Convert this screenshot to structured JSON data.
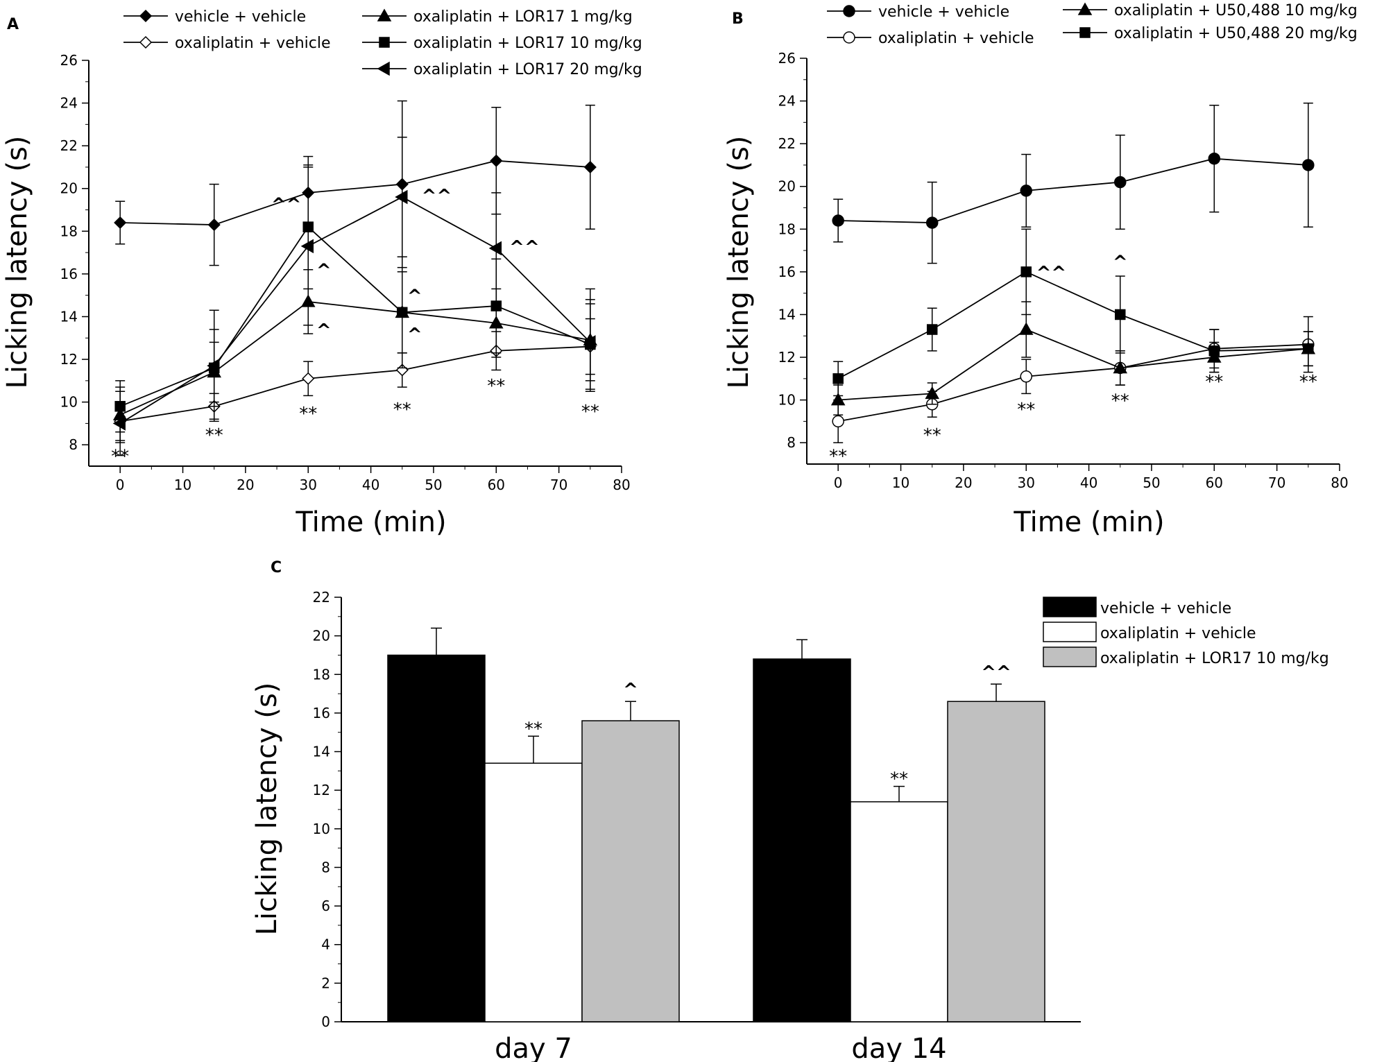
{
  "chart_data": [
    {
      "panel": "A",
      "type": "line",
      "xlabel": "Time (min)",
      "ylabel": "Licking latency (s)",
      "xlim": [
        -5,
        80
      ],
      "ylim": [
        7,
        26
      ],
      "x_ticks": [
        0,
        10,
        20,
        30,
        40,
        50,
        60,
        70,
        80
      ],
      "y_ticks": [
        8,
        10,
        12,
        14,
        16,
        18,
        20,
        22,
        24,
        26
      ],
      "legend_columns": [
        [
          "vehicle + vehicle",
          "oxaliplatin + vehicle"
        ],
        [
          "oxaliplatin + LOR17 1 mg/kg",
          "oxaliplatin + LOR17 10 mg/kg",
          "oxaliplatin + LOR17 20 mg/kg"
        ]
      ],
      "series": [
        {
          "name": "vehicle + vehicle",
          "marker": "diamond-filled",
          "x": [
            0,
            15,
            30,
            45,
            60,
            75
          ],
          "y": [
            18.4,
            18.3,
            19.8,
            20.2,
            21.3,
            21.0
          ],
          "err": [
            1.0,
            1.9,
            1.7,
            3.9,
            2.5,
            2.9
          ]
        },
        {
          "name": "oxaliplatin + vehicle",
          "marker": "diamond-open",
          "x": [
            0,
            15,
            30,
            45,
            60,
            75
          ],
          "y": [
            9.1,
            9.8,
            11.1,
            11.5,
            12.4,
            12.6
          ],
          "err": [
            0.9,
            0.6,
            0.8,
            0.8,
            0.9,
            1.3
          ]
        },
        {
          "name": "oxaliplatin + LOR17 1 mg/kg",
          "marker": "triangle-up",
          "x": [
            0,
            15,
            30,
            45,
            60,
            75
          ],
          "y": [
            9.4,
            11.4,
            14.7,
            14.2,
            13.7,
            12.9
          ],
          "err": [
            1.3,
            1.4,
            1.5,
            1.9,
            1.6,
            2.4
          ]
        },
        {
          "name": "oxaliplatin + LOR17 10 mg/kg",
          "marker": "square",
          "x": [
            0,
            15,
            30,
            45,
            60,
            75
          ],
          "y": [
            9.8,
            11.6,
            18.2,
            14.2,
            14.5,
            12.7
          ],
          "err": [
            1.2,
            1.8,
            2.9,
            2.6,
            2.2,
            2.1
          ]
        },
        {
          "name": "oxaliplatin + LOR17 20 mg/kg",
          "marker": "triangle-left",
          "x": [
            0,
            15,
            30,
            45,
            60,
            75
          ],
          "y": [
            9.0,
            11.7,
            17.3,
            19.6,
            17.2,
            12.8
          ],
          "err": [
            1.5,
            2.6,
            3.7,
            2.8,
            2.6,
            1.8
          ]
        }
      ],
      "annotations": [
        {
          "text": "**",
          "x": 0,
          "y": 7.5
        },
        {
          "text": "**",
          "x": 15,
          "y": 8.5
        },
        {
          "text": "**",
          "x": 30,
          "y": 9.5
        },
        {
          "text": "**",
          "x": 45,
          "y": 9.7
        },
        {
          "text": "**",
          "x": 60,
          "y": 10.8
        },
        {
          "text": "**",
          "x": 75,
          "y": 9.6
        },
        {
          "text": "^^",
          "x": 26.5,
          "y": 19.3
        },
        {
          "text": "^",
          "x": 32.5,
          "y": 16.2
        },
        {
          "text": "^",
          "x": 32.5,
          "y": 13.4
        },
        {
          "text": "^",
          "x": 47,
          "y": 15.0
        },
        {
          "text": "^",
          "x": 47,
          "y": 13.2
        },
        {
          "text": "^^",
          "x": 50.5,
          "y": 19.7
        },
        {
          "text": "^^",
          "x": 64.5,
          "y": 17.3
        }
      ]
    },
    {
      "panel": "B",
      "type": "line",
      "xlabel": "Time (min)",
      "ylabel": "Licking latency (s)",
      "xlim": [
        -5,
        80
      ],
      "ylim": [
        7,
        26
      ],
      "x_ticks": [
        0,
        10,
        20,
        30,
        40,
        50,
        60,
        70,
        80
      ],
      "y_ticks": [
        8,
        10,
        12,
        14,
        16,
        18,
        20,
        22,
        24,
        26
      ],
      "legend_columns": [
        [
          "vehicle + vehicle",
          "oxaliplatin + vehicle"
        ],
        [
          "oxaliplatin + U50,488 10 mg/kg",
          "oxaliplatin + U50,488 20 mg/kg"
        ]
      ],
      "series": [
        {
          "name": "vehicle + vehicle",
          "marker": "circle-filled",
          "x": [
            0,
            15,
            30,
            45,
            60,
            75
          ],
          "y": [
            18.4,
            18.3,
            19.8,
            20.2,
            21.3,
            21.0
          ],
          "err": [
            1.0,
            1.9,
            1.7,
            2.2,
            2.5,
            2.9
          ]
        },
        {
          "name": "oxaliplatin + vehicle",
          "marker": "circle-open",
          "x": [
            0,
            15,
            30,
            45,
            60,
            75
          ],
          "y": [
            9.0,
            9.8,
            11.1,
            11.5,
            12.4,
            12.6
          ],
          "err": [
            1.0,
            0.6,
            0.8,
            0.8,
            0.9,
            1.3
          ]
        },
        {
          "name": "oxaliplatin + U50,488 10 mg/kg",
          "marker": "triangle-up",
          "x": [
            0,
            15,
            30,
            45,
            60,
            75
          ],
          "y": [
            10.0,
            10.3,
            13.3,
            11.5,
            12.0,
            12.4
          ],
          "err": [
            0.7,
            0.5,
            1.3,
            0.8,
            0.7,
            0.8
          ]
        },
        {
          "name": "oxaliplatin + U50,488 20 mg/kg",
          "marker": "square",
          "x": [
            0,
            15,
            30,
            45,
            60,
            75
          ],
          "y": [
            11.0,
            13.3,
            16.0,
            14.0,
            12.3,
            12.4
          ],
          "err": [
            0.8,
            1.0,
            2.0,
            1.8,
            1.0,
            0.8
          ]
        }
      ],
      "annotations": [
        {
          "text": "**",
          "x": 0,
          "y": 7.4
        },
        {
          "text": "**",
          "x": 15,
          "y": 8.4
        },
        {
          "text": "**",
          "x": 30,
          "y": 9.6
        },
        {
          "text": "**",
          "x": 45,
          "y": 10.0
        },
        {
          "text": "**",
          "x": 60,
          "y": 10.9
        },
        {
          "text": "**",
          "x": 75,
          "y": 10.9
        },
        {
          "text": "^^",
          "x": 34,
          "y": 16.0
        },
        {
          "text": "^",
          "x": 45,
          "y": 16.5
        }
      ]
    },
    {
      "panel": "C",
      "type": "bar",
      "ylabel": "Licking latency (s)",
      "ylim": [
        0,
        22
      ],
      "y_ticks": [
        0,
        2,
        4,
        6,
        8,
        10,
        12,
        14,
        16,
        18,
        20,
        22
      ],
      "categories": [
        "day 7",
        "day 14"
      ],
      "series": [
        {
          "name": "vehicle + vehicle",
          "color": "#000000",
          "values": [
            19.0,
            18.8
          ],
          "err": [
            1.4,
            1.0
          ]
        },
        {
          "name": "oxaliplatin + vehicle",
          "color": "#ffffff",
          "values": [
            13.4,
            11.4
          ],
          "err": [
            1.4,
            0.8
          ]
        },
        {
          "name": "oxaliplatin + LOR17 10 mg/kg",
          "color": "#c0c0c0",
          "values": [
            15.6,
            16.6
          ],
          "err": [
            1.0,
            0.9
          ]
        }
      ],
      "annotations": [
        {
          "text": "**",
          "category": 0,
          "series": 1
        },
        {
          "text": "^",
          "category": 0,
          "series": 2
        },
        {
          "text": "**",
          "category": 1,
          "series": 1
        },
        {
          "text": "^^",
          "category": 1,
          "series": 2
        }
      ]
    }
  ]
}
